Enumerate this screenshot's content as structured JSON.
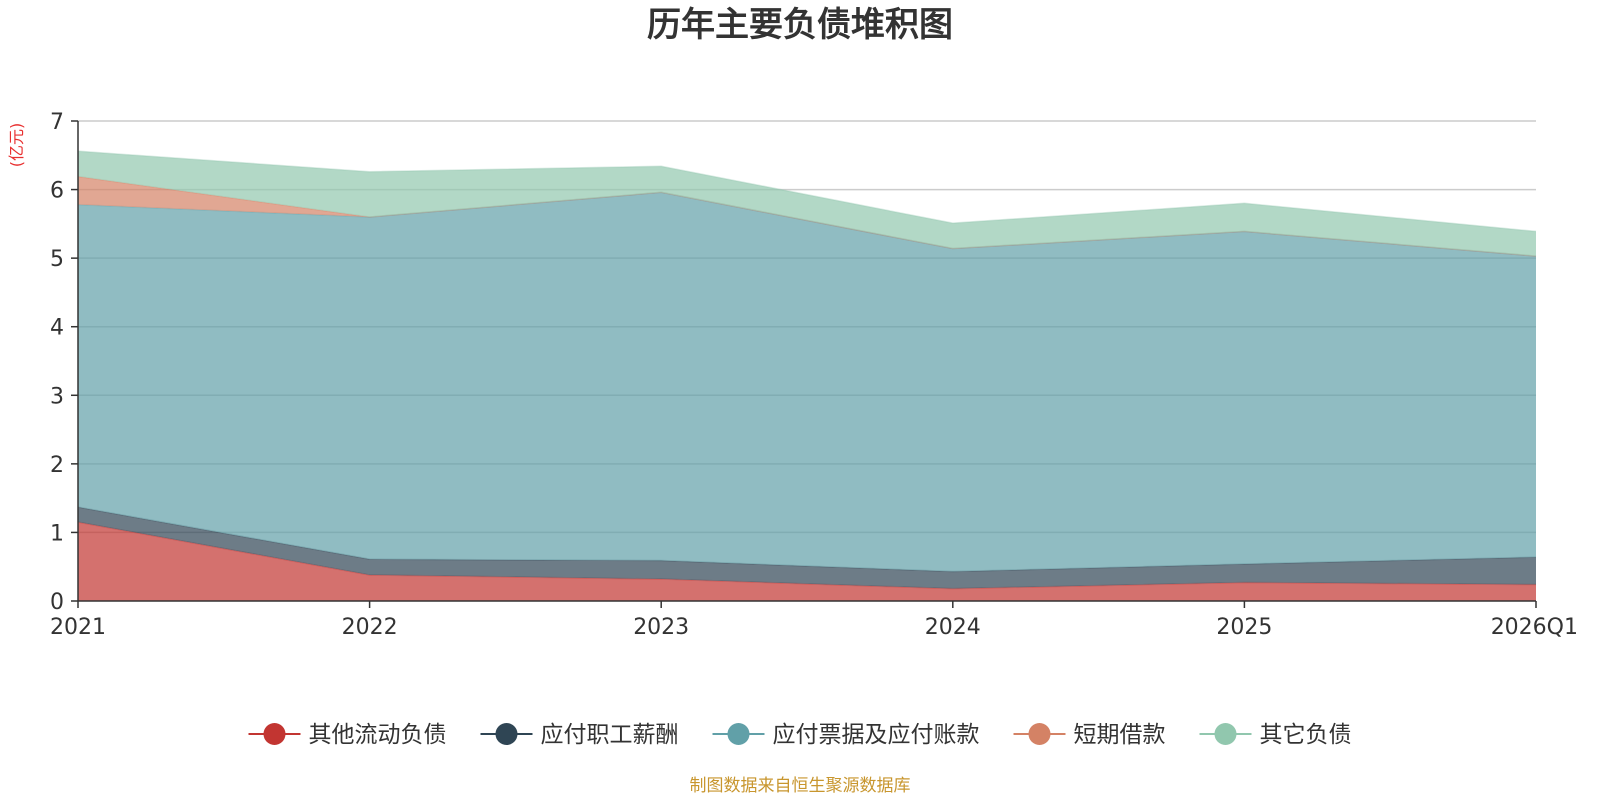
{
  "chart_data": {
    "type": "area",
    "stacked": true,
    "title": "历年主要负债堆积图",
    "unit_label": "(亿元)",
    "categories": [
      "2021",
      "2022",
      "2023",
      "2024",
      "2025",
      "2026Q1"
    ],
    "ylim": [
      0,
      7
    ],
    "yticks": [
      "0",
      "1",
      "2",
      "3",
      "4",
      "5",
      "6",
      "7"
    ],
    "grid": true,
    "legend_position": "bottom",
    "series": [
      {
        "name": "其他流动负债",
        "color": "#c23531",
        "values": [
          1.15,
          0.38,
          0.32,
          0.18,
          0.27,
          0.24
        ]
      },
      {
        "name": "应付职工薪酬",
        "color": "#2f4554",
        "values": [
          0.22,
          0.23,
          0.27,
          0.25,
          0.27,
          0.4
        ]
      },
      {
        "name": "应付票据及应付账款",
        "color": "#61a0a8",
        "values": [
          4.41,
          4.99,
          5.37,
          4.71,
          4.85,
          4.39
        ]
      },
      {
        "name": "短期借款",
        "color": "#d48265",
        "values": [
          0.41,
          0.0,
          0.0,
          0.0,
          0.0,
          0.0
        ]
      },
      {
        "name": "其它负债",
        "color": "#91c7ae",
        "values": [
          0.37,
          0.66,
          0.38,
          0.37,
          0.41,
          0.36
        ]
      }
    ]
  },
  "source_note": "制图数据来自恒生聚源数据库"
}
